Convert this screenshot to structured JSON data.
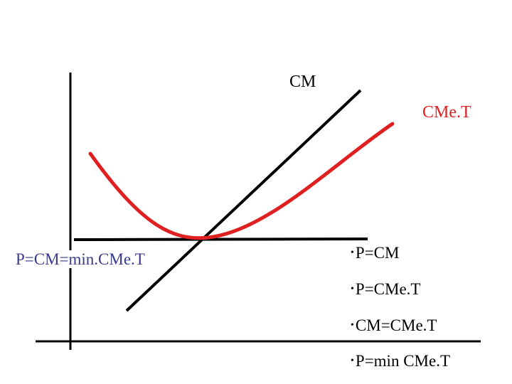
{
  "labels": {
    "cm": "CM",
    "cmet": "CMe.T",
    "equilibrium": "P=CM=min.CMe.T"
  },
  "bullets": [
    "P=CM",
    "P=CMe.T",
    "CM=CMe.T",
    "P=min CMe.T"
  ],
  "colors": {
    "axes": "#000000",
    "cm_line": "#000000",
    "cmet_curve": "#e02020",
    "price_line": "#000000",
    "equilibrium_text": "#3a3a8c"
  }
}
